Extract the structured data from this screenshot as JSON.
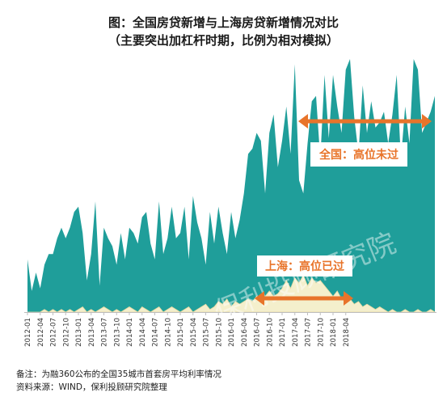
{
  "title": "图：全国房贷新增与上海房贷新增情况对比",
  "subtitle": "（主要突出加杠杆时期，比例为相对模拟）",
  "watermark": "保利投顾研究院",
  "annotations": {
    "national": "全国：高位未过",
    "shanghai": "上海：高位已过"
  },
  "footnotes": {
    "note": "备注：为融360公布的全国35城市首套房平均利率情况",
    "source": "资料来源：WIND，保利投顾研究院整理"
  },
  "colors": {
    "national_fill": "#1f9e9a",
    "shanghai_fill": "#f4efcc",
    "shanghai_stroke": "#e5d9a3",
    "arrow": "#e8742a",
    "label_text": "#e8742a"
  },
  "chart_data": {
    "type": "area",
    "xlabel": "",
    "ylabel": "",
    "grid": false,
    "legend": "none",
    "ylim": [
      0,
      100
    ],
    "tick_labels": [
      "2012-01",
      "2012-04",
      "2012-07",
      "2012-10",
      "2013-01",
      "2013-04",
      "2013-07",
      "2013-10",
      "2014-01",
      "2014-04",
      "2014-07",
      "2014-10",
      "2015-01",
      "2015-04",
      "2015-07",
      "2015-10",
      "2016-01",
      "2016-04",
      "2016-07",
      "2016-10",
      "2017-01",
      "2017-04",
      "2017-07",
      "2017-10",
      "2018-01",
      "2018-04"
    ],
    "x_start": "2012-01",
    "series": [
      {
        "values": [
          20,
          8,
          15,
          9,
          18,
          22,
          22,
          28,
          32,
          28,
          32,
          38,
          40,
          30,
          12,
          22,
          42,
          10,
          32,
          28,
          25,
          18,
          30,
          20,
          32,
          30,
          26,
          36,
          38,
          26,
          20,
          42,
          22,
          28,
          40,
          28,
          30,
          40,
          20,
          44,
          34,
          28,
          18,
          38,
          26,
          40,
          30,
          22,
          38,
          28,
          35,
          45,
          60,
          62,
          68,
          65,
          45,
          68,
          75,
          55,
          65,
          78,
          60,
          94,
          50,
          45,
          64,
          80,
          82,
          58,
          90,
          66,
          90,
          78,
          68,
          92,
          96,
          74,
          60,
          86,
          68,
          80,
          70,
          72,
          76,
          64,
          75,
          90,
          58,
          78,
          64,
          96,
          92,
          68,
          72,
          76,
          82
        ],
        "ref_index": [
          0,
          3,
          6,
          9,
          12,
          15,
          18,
          21,
          24,
          27,
          30,
          33,
          36,
          39,
          42,
          45,
          48,
          51,
          54,
          57,
          60,
          63,
          66,
          69,
          72,
          75
        ]
      },
      {
        "values": [
          0,
          0,
          0,
          0,
          1,
          0,
          1,
          0,
          1,
          0,
          1,
          0,
          1,
          2,
          0,
          1,
          0,
          1,
          2,
          1,
          0,
          1,
          0,
          1,
          2,
          1,
          0,
          2,
          1,
          0,
          1,
          2,
          0,
          1,
          2,
          1,
          0,
          1,
          2,
          0,
          1,
          2,
          3,
          1,
          2,
          4,
          3,
          5,
          2,
          4,
          3,
          4,
          5,
          4,
          6,
          5,
          6,
          8,
          6,
          7,
          9,
          12,
          9,
          13,
          11,
          14,
          10,
          13,
          11,
          12,
          10,
          8,
          6,
          8,
          5,
          4,
          5,
          3,
          4,
          2,
          3,
          2,
          1,
          2,
          1,
          0,
          1,
          0,
          0,
          1,
          0,
          0,
          1,
          0,
          0,
          1,
          0
        ]
      }
    ]
  }
}
